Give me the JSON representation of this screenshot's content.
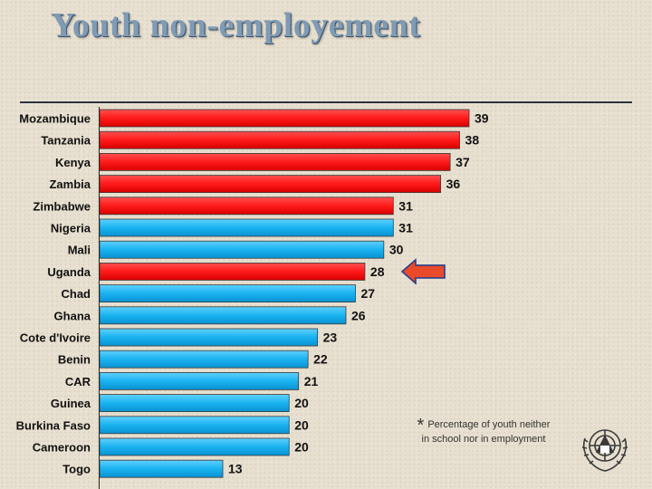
{
  "slide": {
    "title": "Youth non-employement",
    "footnote_marker": "*",
    "footnote_text": "Percentage of youth neither in school nor in employment"
  },
  "colors": {
    "red": "#ff1a1a",
    "blue": "#1ab2f0",
    "arrow": "#e84a2a",
    "title": "#7f9bb5"
  },
  "logo": {
    "icon": "ilo-emblem-icon"
  },
  "chart_data": {
    "type": "bar",
    "orientation": "horizontal",
    "title": "",
    "xlabel": "",
    "ylabel": "",
    "xlim": [
      0,
      39
    ],
    "grid": false,
    "categories": [
      "Mozambique",
      "Tanzania",
      "Kenya",
      "Zambia",
      "Zimbabwe",
      "Nigeria",
      "Mali",
      "Uganda",
      "Chad",
      "Ghana",
      "Cote d'Ivoire",
      "Benin",
      "CAR",
      "Guinea",
      "Burkina Faso",
      "Cameroon",
      "Togo"
    ],
    "values": [
      39,
      38,
      37,
      36,
      31,
      31,
      30,
      28,
      27,
      26,
      23,
      22,
      21,
      20,
      20,
      20,
      13
    ],
    "bar_colors": [
      "red",
      "red",
      "red",
      "red",
      "red",
      "blue",
      "blue",
      "red",
      "blue",
      "blue",
      "blue",
      "blue",
      "blue",
      "blue",
      "blue",
      "blue",
      "blue"
    ],
    "highlighted_category": "Uganda",
    "highlight_marker": "left-arrow"
  }
}
